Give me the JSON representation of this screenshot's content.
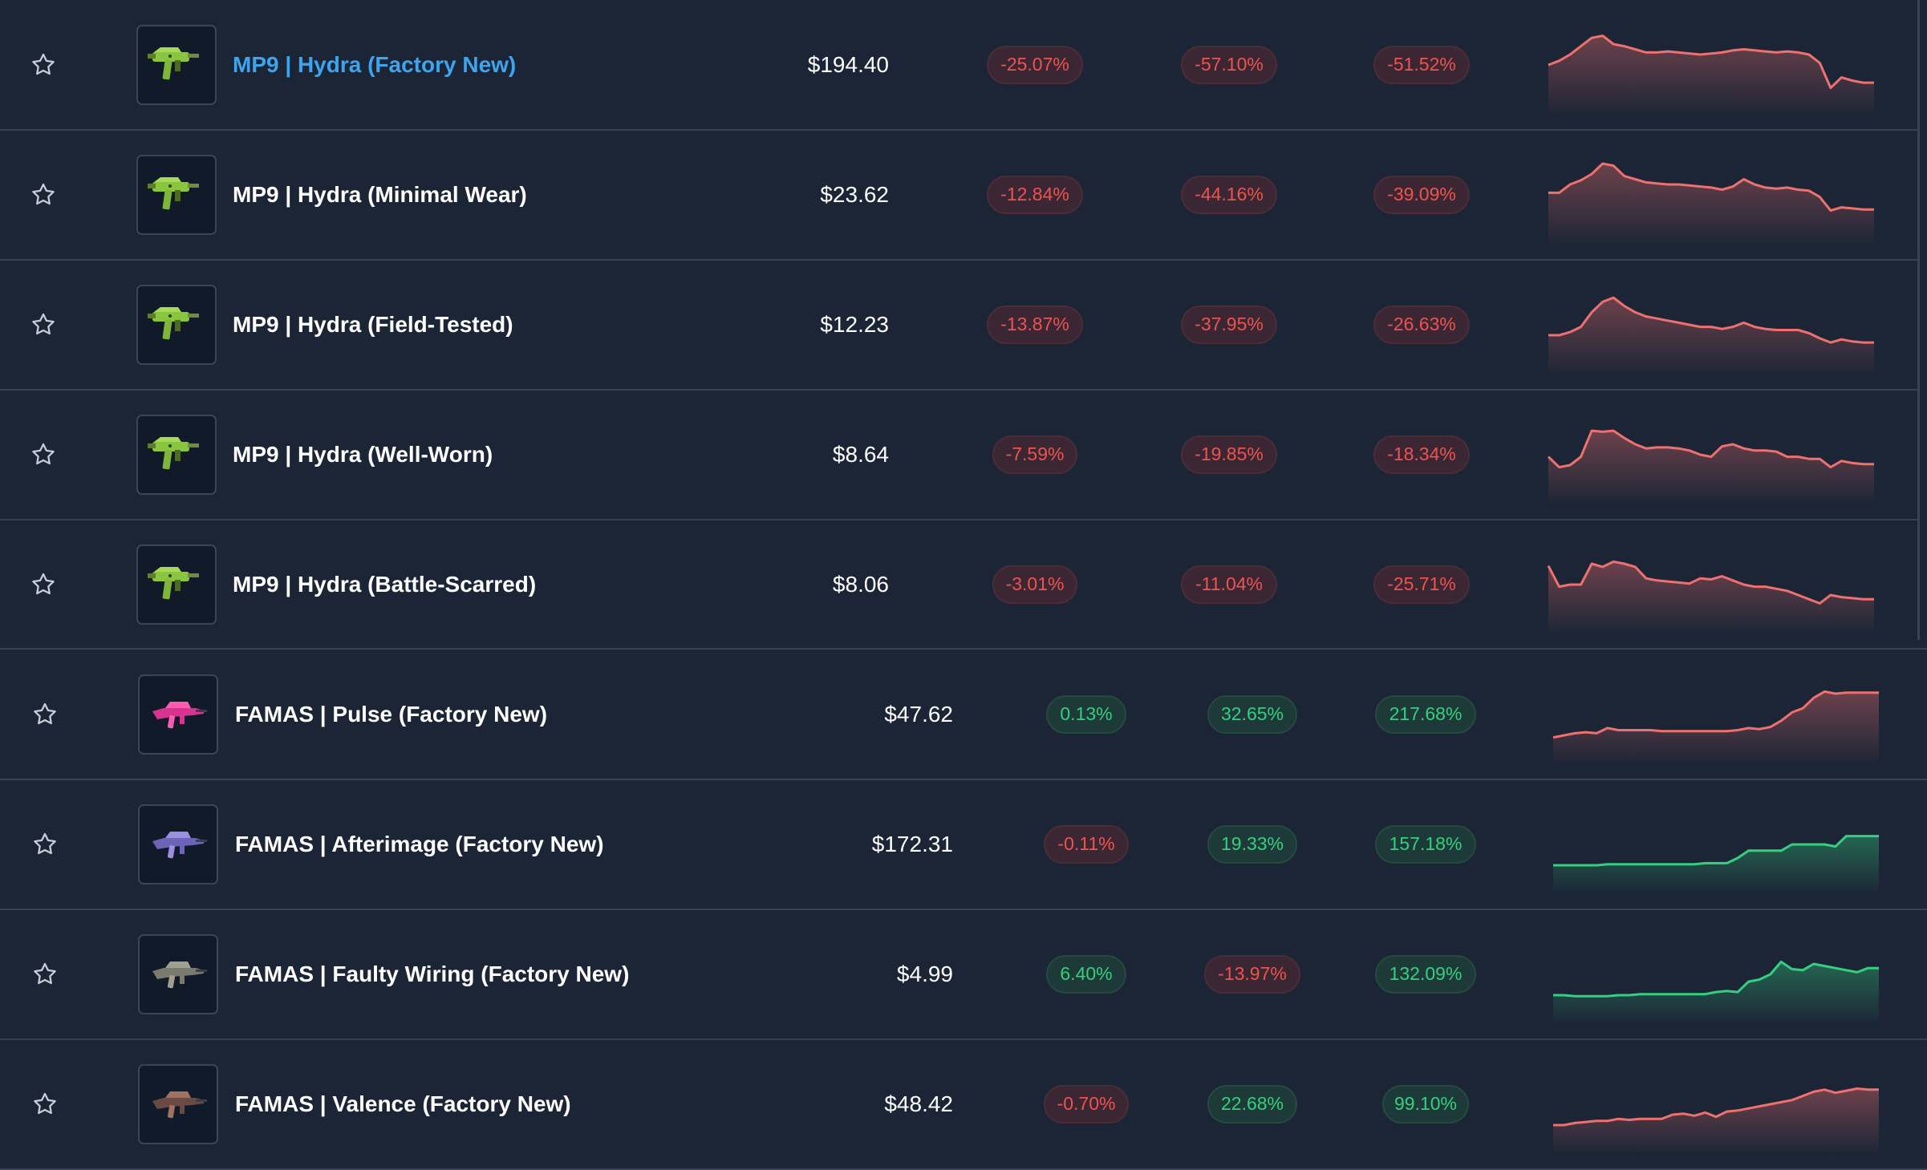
{
  "colors": {
    "background": "#1b2535",
    "divider": "#374355",
    "link_blue": "#3da5f0",
    "negative": "#ef5350",
    "positive": "#35d07f"
  },
  "icons": {
    "favorite": "star-outline-icon",
    "mp9_thumbnail": "mp9-hydra-weapon-icon",
    "famas_thumbnail": "famas-weapon-icon"
  },
  "groups": [
    {
      "rows": [
        {
          "name": "MP9 | Hydra (Factory New)",
          "price": "$194.40",
          "changes": [
            "-25.07%",
            "-57.10%",
            "-51.52%"
          ],
          "trend": "negative",
          "sparkline": [
            40,
            44,
            50,
            58,
            66,
            68,
            60,
            58,
            55,
            52,
            52,
            53,
            52,
            51,
            50,
            51,
            52,
            54,
            55,
            54,
            53,
            52,
            53,
            52,
            50,
            42,
            18,
            28,
            25,
            23,
            23
          ]
        },
        {
          "name": "MP9 | Hydra (Minimal Wear)",
          "price": "$23.62",
          "changes": [
            "-12.84%",
            "-44.16%",
            "-39.09%"
          ],
          "trend": "negative",
          "sparkline": [
            42,
            42,
            50,
            54,
            60,
            70,
            68,
            58,
            55,
            52,
            51,
            50,
            50,
            49,
            48,
            47,
            45,
            48,
            55,
            50,
            47,
            46,
            47,
            45,
            44,
            38,
            25,
            28,
            27,
            26,
            26
          ]
        },
        {
          "name": "MP9 | Hydra (Field-Tested)",
          "price": "$12.23",
          "changes": [
            "-13.87%",
            "-37.95%",
            "-26.63%"
          ],
          "trend": "negative",
          "sparkline": [
            30,
            30,
            33,
            38,
            52,
            62,
            66,
            58,
            52,
            48,
            46,
            44,
            42,
            40,
            38,
            38,
            36,
            38,
            42,
            38,
            36,
            35,
            35,
            35,
            32,
            27,
            23,
            26,
            24,
            23,
            23
          ]
        },
        {
          "name": "MP9 | Hydra (Well-Worn)",
          "price": "$8.64",
          "changes": [
            "-7.59%",
            "-19.85%",
            "-18.34%"
          ],
          "trend": "negative",
          "sparkline": [
            38,
            28,
            30,
            38,
            63,
            62,
            63,
            56,
            50,
            46,
            47,
            47,
            46,
            44,
            40,
            38,
            48,
            50,
            46,
            44,
            44,
            43,
            38,
            38,
            36,
            36,
            28,
            34,
            32,
            31,
            31
          ]
        },
        {
          "name": "MP9 | Hydra (Battle-Scarred)",
          "price": "$8.06",
          "changes": [
            "-3.01%",
            "-11.04%",
            "-25.71%"
          ],
          "trend": "negative",
          "sparkline": [
            58,
            38,
            40,
            40,
            60,
            57,
            62,
            60,
            57,
            46,
            44,
            43,
            42,
            41,
            46,
            45,
            48,
            44,
            40,
            38,
            38,
            36,
            34,
            30,
            26,
            22,
            30,
            28,
            27,
            26,
            26
          ]
        }
      ]
    },
    {
      "rows": [
        {
          "name": "FAMAS | Pulse (Factory New)",
          "price": "$47.62",
          "changes": [
            "0.13%",
            "32.65%",
            "217.68%"
          ],
          "trend": "negative",
          "sparkline": [
            18,
            20,
            22,
            23,
            22,
            27,
            25,
            25,
            25,
            25,
            24,
            24,
            24,
            24,
            24,
            24,
            24,
            25,
            27,
            26,
            28,
            34,
            42,
            46,
            56,
            62,
            60,
            61,
            61,
            61,
            61
          ]
        },
        {
          "name": "FAMAS | Afterimage (Factory New)",
          "price": "$172.31",
          "changes": [
            "-0.11%",
            "19.33%",
            "157.18%"
          ],
          "trend": "positive",
          "sparkline": [
            20,
            20,
            20,
            20,
            20,
            21,
            21,
            21,
            21,
            21,
            21,
            21,
            21,
            21,
            22,
            22,
            22,
            27,
            34,
            34,
            34,
            34,
            40,
            40,
            40,
            40,
            38,
            48,
            48,
            48,
            48
          ]
        },
        {
          "name": "FAMAS | Faulty Wiring (Factory New)",
          "price": "$4.99",
          "changes": [
            "6.40%",
            "-13.97%",
            "132.09%"
          ],
          "trend": "positive",
          "sparkline": [
            20,
            20,
            19,
            19,
            19,
            19,
            20,
            20,
            21,
            21,
            21,
            21,
            21,
            21,
            21,
            23,
            24,
            23,
            33,
            35,
            40,
            52,
            45,
            44,
            50,
            48,
            46,
            44,
            42,
            46,
            46
          ]
        },
        {
          "name": "FAMAS | Valence (Factory New)",
          "price": "$48.42",
          "changes": [
            "-0.70%",
            "22.68%",
            "99.10%"
          ],
          "trend": "negative",
          "sparkline": [
            20,
            20,
            22,
            23,
            24,
            24,
            26,
            25,
            26,
            26,
            26,
            30,
            31,
            29,
            32,
            28,
            33,
            34,
            36,
            38,
            40,
            42,
            44,
            48,
            52,
            54,
            51,
            53,
            55,
            54,
            54
          ]
        }
      ]
    }
  ]
}
